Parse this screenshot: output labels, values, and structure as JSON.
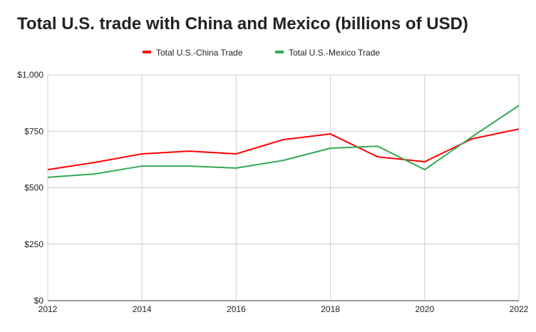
{
  "chart_data": {
    "type": "line",
    "title": "Total U.S. trade with China and Mexico (billions of USD)",
    "x": [
      2012,
      2013,
      2014,
      2015,
      2016,
      2017,
      2018,
      2019,
      2020,
      2021,
      2022
    ],
    "x_tick_labels": [
      "2012",
      "2014",
      "2016",
      "2018",
      "2020",
      "2022"
    ],
    "y_tick_labels": [
      "$0",
      "$250",
      "$500",
      "$750",
      "$1,000"
    ],
    "ylim": [
      0,
      1000
    ],
    "xlim": [
      2012,
      2022
    ],
    "grid": true,
    "legend_position": "top",
    "series": [
      {
        "name": "Total U.S.-China Trade",
        "color": "#ff0000",
        "values": [
          580,
          612,
          650,
          662,
          650,
          713,
          738,
          637,
          615,
          716,
          760
        ]
      },
      {
        "name": "Total U.S.-Mexico Trade",
        "color": "#34a853",
        "values": [
          546,
          561,
          596,
          596,
          587,
          621,
          675,
          684,
          580,
          725,
          864
        ]
      }
    ]
  }
}
